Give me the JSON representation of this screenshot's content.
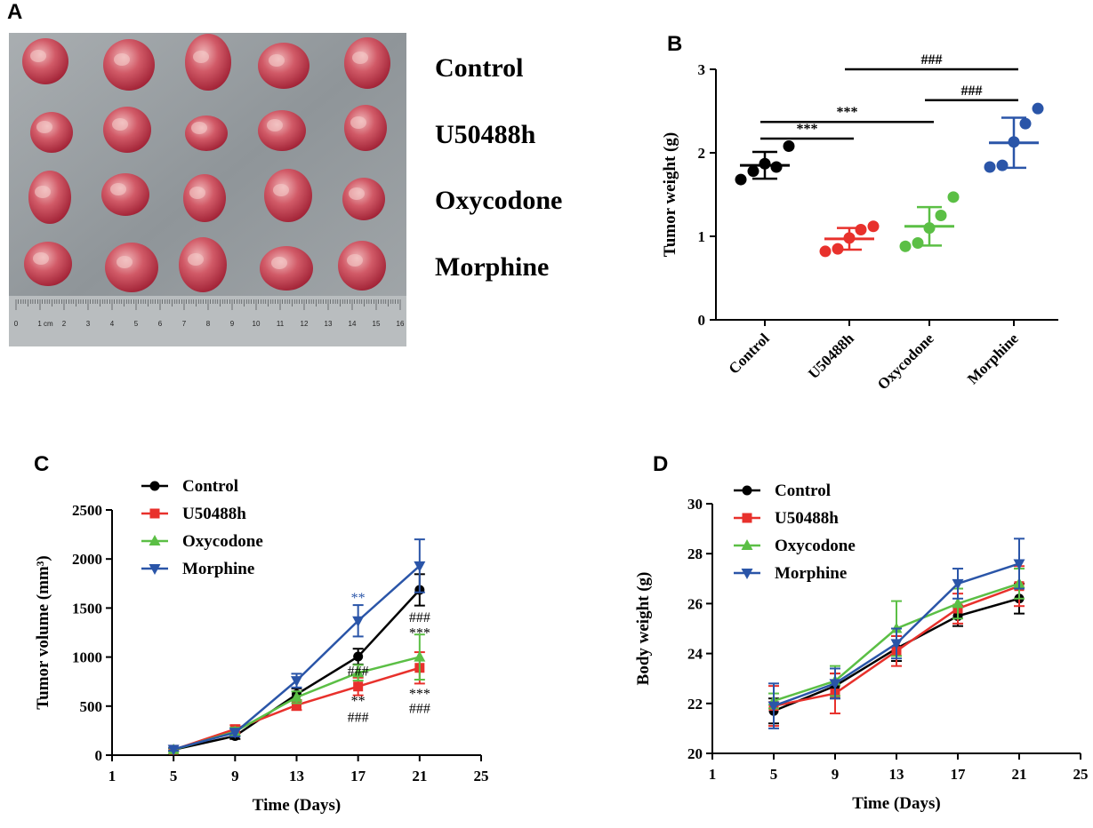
{
  "panel_letters": {
    "a": "A",
    "b": "B",
    "c": "C",
    "d": "D"
  },
  "photo": {
    "group_labels": [
      "Control",
      "U50488h",
      "Oxycodone",
      "Morphine"
    ],
    "ruler_numbers": [
      "0",
      "1 cm",
      "2",
      "3",
      "4",
      "5",
      "6",
      "7",
      "8",
      "9",
      "10",
      "11",
      "12",
      "13",
      "14",
      "15",
      "16"
    ]
  },
  "colors": {
    "control": "#000000",
    "u50488h": "#e8312c",
    "oxycodone": "#5bbf45",
    "morphine": "#2a55a8",
    "tumor": "#c2364a",
    "tray": "#9aa0a4"
  },
  "chart_data": [
    {
      "id": "B",
      "type": "scatter",
      "ylabel": "Tumor weight (g)",
      "xlabel": "",
      "ylim": [
        0,
        3
      ],
      "yticks": [
        0,
        1,
        2,
        3
      ],
      "categories": [
        "Control",
        "U50488h",
        "Oxycodone",
        "Morphine"
      ],
      "points": [
        [
          1.68,
          1.78,
          1.87,
          1.83,
          2.08
        ],
        [
          0.82,
          0.85,
          0.98,
          1.08,
          1.12
        ],
        [
          0.88,
          0.92,
          1.1,
          1.25,
          1.47
        ],
        [
          1.83,
          1.85,
          2.13,
          2.35,
          2.53
        ]
      ],
      "mean": [
        1.85,
        0.97,
        1.12,
        2.12
      ],
      "sd": [
        0.16,
        0.13,
        0.23,
        0.3
      ],
      "significance": [
        {
          "from": 0,
          "to": 1,
          "y": 2.17,
          "label": "***"
        },
        {
          "from": 0,
          "to": 2,
          "y": 2.37,
          "label": "***"
        },
        {
          "from": 2,
          "to": 3,
          "y": 2.63,
          "label": "###"
        },
        {
          "from": 1,
          "to": 3,
          "y": 3.0,
          "label": "###"
        }
      ]
    },
    {
      "id": "C",
      "type": "line",
      "xlabel": "Time (Days)",
      "ylabel": "Tumor volume (mm³)",
      "xlim": [
        1,
        25
      ],
      "xticks": [
        1,
        5,
        9,
        13,
        17,
        21,
        25
      ],
      "ylim": [
        0,
        2500
      ],
      "yticks": [
        0,
        500,
        1000,
        1500,
        2000,
        2500
      ],
      "x": [
        5,
        9,
        13,
        17,
        21
      ],
      "series": [
        {
          "name": "Control",
          "marker": "circle",
          "values": [
            55,
            195,
            620,
            1005,
            1685
          ],
          "err": [
            15,
            30,
            60,
            80,
            160
          ]
        },
        {
          "name": "U50488h",
          "marker": "square",
          "values": [
            55,
            265,
            510,
            700,
            890
          ],
          "err": [
            15,
            40,
            50,
            90,
            160
          ]
        },
        {
          "name": "Oxycodone",
          "marker": "triangle-up",
          "values": [
            55,
            240,
            590,
            840,
            1000
          ],
          "err": [
            15,
            40,
            60,
            80,
            230
          ]
        },
        {
          "name": "Morphine",
          "marker": "triangle-down",
          "values": [
            60,
            230,
            760,
            1370,
            1930
          ],
          "err": [
            15,
            40,
            70,
            160,
            270
          ]
        }
      ],
      "annotations": [
        {
          "x": 17,
          "y": 1560,
          "label": "**",
          "color": "#2a55a8"
        },
        {
          "x": 17,
          "y": 810,
          "label": "###",
          "color": "#000000"
        },
        {
          "x": 17,
          "y": 505,
          "label": "**",
          "color": "#000000"
        },
        {
          "x": 17,
          "y": 340,
          "label": "###",
          "color": "#000000"
        },
        {
          "x": 21,
          "y": 1360,
          "label": "###",
          "color": "#000000"
        },
        {
          "x": 21,
          "y": 1200,
          "label": "***",
          "color": "#000000"
        },
        {
          "x": 21,
          "y": 580,
          "label": "***",
          "color": "#000000"
        },
        {
          "x": 21,
          "y": 430,
          "label": "###",
          "color": "#000000"
        }
      ]
    },
    {
      "id": "D",
      "type": "line",
      "xlabel": "Time (Days)",
      "ylabel": "Body weight (g)",
      "xlim": [
        1,
        25
      ],
      "xticks": [
        1,
        5,
        9,
        13,
        17,
        21,
        25
      ],
      "ylim": [
        20,
        30
      ],
      "yticks": [
        20,
        22,
        24,
        26,
        28,
        30
      ],
      "x": [
        5,
        9,
        13,
        17,
        21
      ],
      "series": [
        {
          "name": "Control",
          "marker": "circle",
          "values": [
            21.7,
            22.7,
            24.2,
            25.5,
            26.2
          ],
          "err": [
            0.5,
            0.5,
            0.5,
            0.4,
            0.6
          ]
        },
        {
          "name": "U50488h",
          "marker": "square",
          "values": [
            21.9,
            22.4,
            24.1,
            25.8,
            26.7
          ],
          "err": [
            0.8,
            0.8,
            0.6,
            0.6,
            0.8
          ]
        },
        {
          "name": "Oxycodone",
          "marker": "triangle-up",
          "values": [
            22.1,
            22.9,
            25.0,
            26.0,
            26.8
          ],
          "err": [
            0.3,
            0.6,
            1.1,
            0.6,
            0.6
          ]
        },
        {
          "name": "Morphine",
          "marker": "triangle-down",
          "values": [
            21.9,
            22.8,
            24.4,
            26.8,
            27.6
          ],
          "err": [
            0.9,
            0.6,
            0.6,
            0.6,
            1.0
          ]
        }
      ]
    }
  ]
}
